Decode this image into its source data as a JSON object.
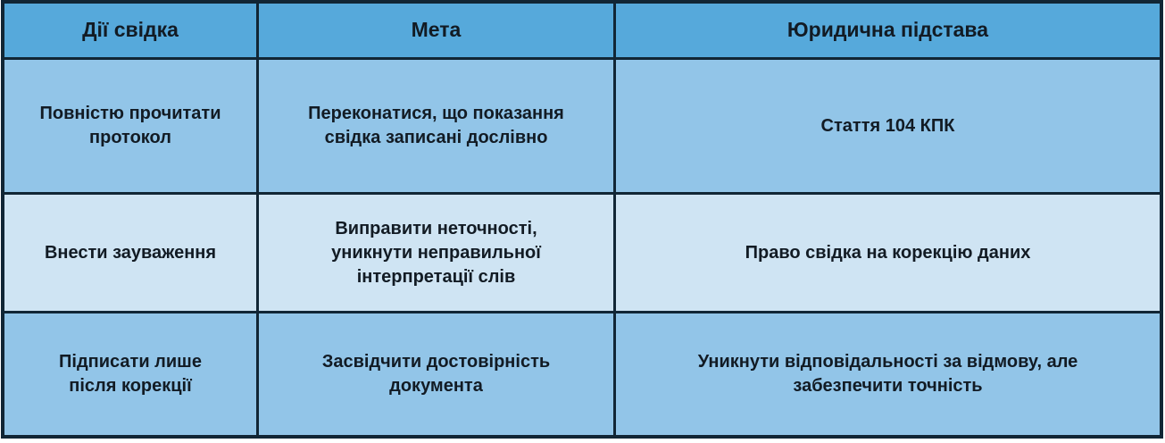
{
  "table": {
    "columns": [
      {
        "label": "Дії свідка"
      },
      {
        "label": "Мета"
      },
      {
        "label": "Юридична підстава"
      }
    ],
    "rows": [
      {
        "cells": [
          "Повністю прочитати протокол",
          "Переконатися, що показання свідка записані дослівно",
          "Стаття 104 КПК"
        ]
      },
      {
        "cells": [
          "Внести зауваження",
          "Виправити неточності, уникнути неправильної інтерпретації слів",
          "Право свідка на корекцію даних"
        ]
      },
      {
        "cells": [
          "Підписати лише після корекції",
          "Засвідчити достовірність документа",
          "Уникнути відповідальності за відмову, але забезпечити точність"
        ]
      }
    ]
  },
  "colors": {
    "header_bg": "#56a9db",
    "row_bg": "#92c5e8",
    "row_alt_bg": "#cfe4f3",
    "border": "#112635",
    "text": "#121b24"
  }
}
